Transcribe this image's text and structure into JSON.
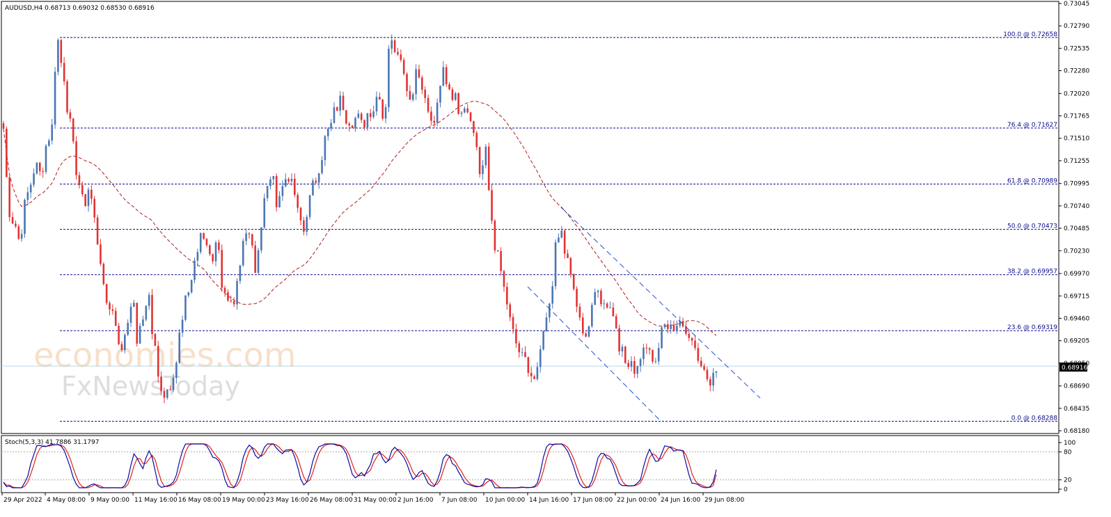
{
  "chart_data": [
    {
      "type": "candlestick",
      "symbol_header": "AUDUSD,H4  0.68713 0.69032 0.68530 0.68916",
      "current_price_label": "0.68916",
      "current_price": 0.68916,
      "ylim": [
        0.6818,
        0.73045
      ],
      "y_ticks": [
        "0.73045",
        "0.72790",
        "0.72535",
        "0.72280",
        "0.72020",
        "0.71765",
        "0.71510",
        "0.71255",
        "0.70995",
        "0.70740",
        "0.70485",
        "0.70230",
        "0.69970",
        "0.69715",
        "0.69460",
        "0.69205",
        "0.68950",
        "0.68690",
        "0.68435",
        "0.68180"
      ],
      "x_ticks": [
        "29 Apr 2022",
        "4 May 08:00",
        "9 May 00:00",
        "11 May 16:00",
        "16 May 08:00",
        "19 May 00:00",
        "23 May 16:00",
        "26 May 08:00",
        "31 May 00:00",
        "2 Jun 16:00",
        "7 Jun 08:00",
        "10 Jun 00:00",
        "14 Jun 16:00",
        "17 Jun 08:00",
        "22 Jun 00:00",
        "24 Jun 16:00",
        "29 Jun 08:00"
      ],
      "fibonacci_levels": [
        {
          "label": "100.0 @ 0.72658",
          "value": 0.72658
        },
        {
          "label": "76.4 @ 0.71627",
          "value": 0.71627
        },
        {
          "label": "61.8 @ 0.70989",
          "value": 0.70989
        },
        {
          "label": "50.0 @ 0.70473",
          "value": 0.70473
        },
        {
          "label": "38.2 @ 0.69957",
          "value": 0.69957
        },
        {
          "label": "23.6 @ 0.69319",
          "value": 0.69319
        },
        {
          "label": "0.0 @ 0.68288",
          "value": 0.68288
        }
      ],
      "price_path": [
        0.7162,
        0.7068,
        0.7055,
        0.7035,
        0.7075,
        0.7099,
        0.712,
        0.711,
        0.7143,
        0.7163,
        0.7265,
        0.7232,
        0.7186,
        0.714,
        0.71,
        0.7075,
        0.7095,
        0.7058,
        0.7015,
        0.6965,
        0.696,
        0.694,
        0.6905,
        0.694,
        0.697,
        0.692,
        0.6945,
        0.6975,
        0.692,
        0.6875,
        0.686,
        0.687,
        0.689,
        0.693,
        0.6965,
        0.699,
        0.702,
        0.704,
        0.703,
        0.7015,
        0.7035,
        0.6975,
        0.696,
        0.6955,
        0.7,
        0.704,
        0.705,
        0.7,
        0.705,
        0.709,
        0.711,
        0.708,
        0.7095,
        0.711,
        0.7095,
        0.7065,
        0.7045,
        0.708,
        0.71,
        0.712,
        0.715,
        0.7165,
        0.7185,
        0.7195,
        0.7175,
        0.717,
        0.7175,
        0.7165,
        0.718,
        0.7185,
        0.7205,
        0.717,
        0.726,
        0.7255,
        0.725,
        0.7215,
        0.7195,
        0.723,
        0.7215,
        0.7185,
        0.7165,
        0.7185,
        0.723,
        0.721,
        0.72,
        0.7185,
        0.719,
        0.718,
        0.715,
        0.711,
        0.7135,
        0.706,
        0.702,
        0.6995,
        0.6955,
        0.6935,
        0.69,
        0.691,
        0.688,
        0.687,
        0.69,
        0.6935,
        0.6965,
        0.7025,
        0.7045,
        0.7015,
        0.699,
        0.696,
        0.6925,
        0.6935,
        0.6965,
        0.6975,
        0.696,
        0.6965,
        0.6945,
        0.6915,
        0.6895,
        0.69,
        0.6885,
        0.6905,
        0.6915,
        0.6895,
        0.69,
        0.6945,
        0.6935,
        0.693,
        0.695,
        0.6935,
        0.6925,
        0.6915,
        0.69,
        0.688,
        0.6868,
        0.6892
      ]
    },
    {
      "type": "line",
      "label": "Stoch(5,3,3) 41.7886 31.1797",
      "main_value": 41.7886,
      "signal_value": 31.1797,
      "ylim": [
        0,
        100
      ],
      "y_ticks": [
        "100",
        "80",
        "20",
        "0"
      ],
      "levels": [
        80,
        20
      ]
    }
  ],
  "watermark": {
    "line1": "economies.com",
    "line2": "FxNewsToday"
  },
  "colors": {
    "bull": "#4a76b4",
    "bear": "#e23232",
    "ma": "#b01c1c",
    "fib": "#0a0a8a",
    "channel": "#2a4fc7",
    "price_line": "#b8d8e8",
    "stoch_main": "#0a0aa0",
    "stoch_signal": "#e02020"
  }
}
